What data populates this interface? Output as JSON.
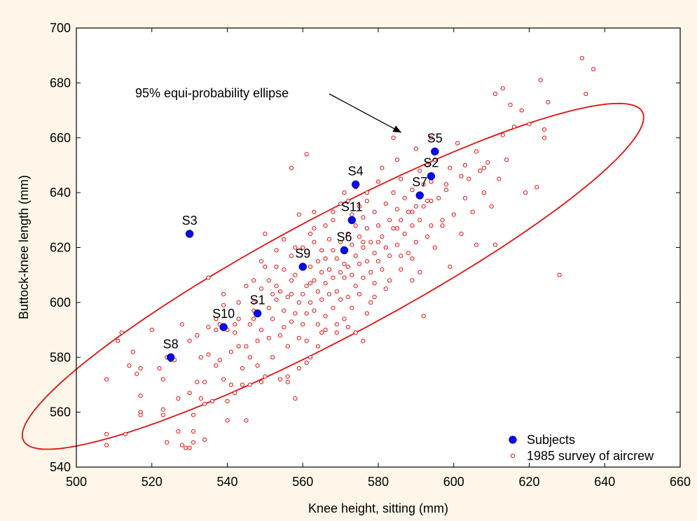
{
  "chart_data": {
    "type": "scatter",
    "xlabel": "Knee height, sitting (mm)",
    "ylabel": "Buttock-knee length (mm)",
    "xlim": [
      500,
      660
    ],
    "ylim": [
      540,
      700
    ],
    "xticks": [
      500,
      520,
      540,
      560,
      580,
      600,
      620,
      640,
      660
    ],
    "yticks": [
      540,
      560,
      580,
      600,
      620,
      640,
      660,
      680,
      700
    ],
    "grid": false,
    "legend_position": "bottom-right",
    "colors": {
      "subjects": "#0a0ae6",
      "survey": "#e01010",
      "ellipse": "#e01010",
      "background": "#fdf6e9"
    },
    "annotation": {
      "text": "95% equi-probability ellipse",
      "arrow_to": [
        586,
        662
      ]
    },
    "ellipse": {
      "label": "95% equi-probability ellipse",
      "center": [
        568.0,
        609.5
      ],
      "semi_major": 101.7,
      "semi_minor": 20.1,
      "angle_deg": 36.8
    },
    "series": [
      {
        "name": "Subjects",
        "marker": "filled-circle",
        "points": [
          {
            "label": "S1",
            "x": 548,
            "y": 596
          },
          {
            "label": "S2",
            "x": 594,
            "y": 646
          },
          {
            "label": "S3",
            "x": 530,
            "y": 625
          },
          {
            "label": "S4",
            "x": 574,
            "y": 643
          },
          {
            "label": "S5",
            "x": 595,
            "y": 655
          },
          {
            "label": "S6",
            "x": 571,
            "y": 619
          },
          {
            "label": "S7",
            "x": 591,
            "y": 639
          },
          {
            "label": "S8",
            "x": 525,
            "y": 580
          },
          {
            "label": "S9",
            "x": 560,
            "y": 613
          },
          {
            "label": "S10",
            "x": 539,
            "y": 591
          },
          {
            "label": "S11",
            "x": 573,
            "y": 630
          }
        ]
      },
      {
        "name": "1985 survey of aircrew",
        "marker": "open-circle",
        "points": [
          [
            508,
            572
          ],
          [
            508,
            552
          ],
          [
            508,
            548
          ],
          [
            511,
            586
          ],
          [
            512,
            589
          ],
          [
            513,
            552
          ],
          [
            514,
            577
          ],
          [
            515,
            582
          ],
          [
            516,
            574
          ],
          [
            517,
            576
          ],
          [
            517,
            566
          ],
          [
            517,
            560
          ],
          [
            517,
            559
          ],
          [
            520,
            590
          ],
          [
            523,
            572
          ],
          [
            523,
            561
          ],
          [
            523,
            559
          ],
          [
            524,
            549
          ],
          [
            524,
            580
          ],
          [
            525,
            579
          ],
          [
            526,
            579
          ],
          [
            527,
            565
          ],
          [
            528,
            548
          ],
          [
            528,
            592
          ],
          [
            529,
            547
          ],
          [
            530,
            586
          ],
          [
            530,
            567
          ],
          [
            530,
            547
          ],
          [
            531,
            559
          ],
          [
            531,
            549
          ],
          [
            532,
            571
          ],
          [
            532,
            588
          ],
          [
            533,
            580
          ],
          [
            533,
            565
          ],
          [
            534,
            571
          ],
          [
            534,
            563
          ],
          [
            534,
            550
          ],
          [
            535,
            609
          ],
          [
            535,
            591
          ],
          [
            535,
            581
          ],
          [
            536,
            564
          ],
          [
            537,
            577
          ],
          [
            537,
            590
          ],
          [
            538,
            579
          ],
          [
            538,
            592
          ],
          [
            539,
            603
          ],
          [
            539,
            599
          ],
          [
            539,
            572
          ],
          [
            540,
            564
          ],
          [
            540,
            557
          ],
          [
            541,
            582
          ],
          [
            541,
            570
          ],
          [
            542,
            567
          ],
          [
            542,
            592
          ],
          [
            543,
            600
          ],
          [
            543,
            594
          ],
          [
            543,
            584
          ],
          [
            544,
            576
          ],
          [
            544,
            570
          ],
          [
            545,
            584
          ],
          [
            545,
            557
          ],
          [
            545,
            606
          ],
          [
            546,
            592
          ],
          [
            546,
            580
          ],
          [
            547,
            608
          ],
          [
            547,
            600
          ],
          [
            547,
            594
          ],
          [
            548,
            586
          ],
          [
            548,
            577
          ],
          [
            549,
            590
          ],
          [
            549,
            571
          ],
          [
            549,
            605
          ],
          [
            550,
            613
          ],
          [
            550,
            625
          ],
          [
            550,
            573
          ],
          [
            551,
            587
          ],
          [
            551,
            598
          ],
          [
            551,
            608
          ],
          [
            552,
            580
          ],
          [
            552,
            594
          ],
          [
            553,
            601
          ],
          [
            553,
            619
          ],
          [
            553,
            613
          ],
          [
            554,
            588
          ],
          [
            554,
            572
          ],
          [
            554,
            604
          ],
          [
            555,
            597
          ],
          [
            555,
            591
          ],
          [
            555,
            623
          ],
          [
            555,
            612
          ],
          [
            556,
            602
          ],
          [
            556,
            584
          ],
          [
            556,
            573
          ],
          [
            557,
            617
          ],
          [
            557,
            593
          ],
          [
            557,
            608
          ],
          [
            557,
            649
          ],
          [
            558,
            596
          ],
          [
            558,
            610
          ],
          [
            558,
            565
          ],
          [
            559,
            600
          ],
          [
            559,
            587
          ],
          [
            559,
            576
          ],
          [
            559,
            632
          ],
          [
            560,
            613
          ],
          [
            560,
            603
          ],
          [
            560,
            592
          ],
          [
            560,
            620
          ],
          [
            561,
            606
          ],
          [
            561,
            596
          ],
          [
            561,
            586
          ],
          [
            561,
            654
          ],
          [
            562,
            613
          ],
          [
            562,
            600
          ],
          [
            562,
            580
          ],
          [
            562,
            625
          ],
          [
            563,
            622
          ],
          [
            563,
            608
          ],
          [
            563,
            597
          ],
          [
            563,
            633
          ],
          [
            564,
            615
          ],
          [
            564,
            604
          ],
          [
            564,
            592
          ],
          [
            564,
            584
          ],
          [
            565,
            619
          ],
          [
            565,
            611
          ],
          [
            565,
            601
          ],
          [
            565,
            589
          ],
          [
            566,
            628
          ],
          [
            566,
            616
          ],
          [
            566,
            607
          ],
          [
            566,
            595
          ],
          [
            567,
            612
          ],
          [
            567,
            603
          ],
          [
            567,
            623
          ],
          [
            568,
            619
          ],
          [
            568,
            609
          ],
          [
            568,
            598
          ],
          [
            568,
            630
          ],
          [
            569,
            616
          ],
          [
            569,
            604
          ],
          [
            569,
            592
          ],
          [
            570,
            622
          ],
          [
            570,
            611
          ],
          [
            570,
            601
          ],
          [
            570,
            636
          ],
          [
            571,
            619
          ],
          [
            571,
            609
          ],
          [
            571,
            594
          ],
          [
            571,
            640
          ],
          [
            572,
            625
          ],
          [
            572,
            613
          ],
          [
            572,
            602
          ],
          [
            572,
            591
          ],
          [
            573,
            632
          ],
          [
            573,
            621
          ],
          [
            573,
            610
          ],
          [
            573,
            598
          ],
          [
            574,
            628
          ],
          [
            574,
            617
          ],
          [
            574,
            606
          ],
          [
            574,
            642
          ],
          [
            575,
            624
          ],
          [
            575,
            614
          ],
          [
            575,
            603
          ],
          [
            575,
            635
          ],
          [
            576,
            631
          ],
          [
            576,
            620
          ],
          [
            576,
            609
          ],
          [
            576,
            586
          ],
          [
            577,
            627
          ],
          [
            577,
            615
          ],
          [
            577,
            637
          ],
          [
            578,
            622
          ],
          [
            578,
            611
          ],
          [
            578,
            600
          ],
          [
            579,
            633
          ],
          [
            579,
            618
          ],
          [
            579,
            607
          ],
          [
            580,
            628
          ],
          [
            580,
            615
          ],
          [
            580,
            644
          ],
          [
            581,
            624
          ],
          [
            581,
            612
          ],
          [
            582,
            636
          ],
          [
            582,
            620
          ],
          [
            582,
            605
          ],
          [
            583,
            630
          ],
          [
            583,
            617
          ],
          [
            584,
            640
          ],
          [
            584,
            627
          ],
          [
            584,
            660
          ],
          [
            585,
            634
          ],
          [
            585,
            621
          ],
          [
            586,
            645
          ],
          [
            586,
            630
          ],
          [
            586,
            617
          ],
          [
            587,
            638
          ],
          [
            587,
            625
          ],
          [
            588,
            633
          ],
          [
            588,
            618
          ],
          [
            589,
            641
          ],
          [
            589,
            628
          ],
          [
            589,
            608
          ],
          [
            590,
            635
          ],
          [
            590,
            622
          ],
          [
            591,
            648
          ],
          [
            591,
            630
          ],
          [
            591,
            611
          ],
          [
            592,
            643
          ],
          [
            592,
            635
          ],
          [
            592,
            595
          ],
          [
            593,
            650
          ],
          [
            593,
            637
          ],
          [
            594,
            644
          ],
          [
            594,
            628
          ],
          [
            595,
            652
          ],
          [
            595,
            620
          ],
          [
            596,
            638
          ],
          [
            597,
            630
          ],
          [
            598,
            643
          ],
          [
            599,
            649
          ],
          [
            600,
            632
          ],
          [
            601,
            658
          ],
          [
            602,
            625
          ],
          [
            603,
            638
          ],
          [
            604,
            645
          ],
          [
            605,
            633
          ],
          [
            606,
            655
          ],
          [
            606,
            621
          ],
          [
            607,
            648
          ],
          [
            608,
            640
          ],
          [
            609,
            651
          ],
          [
            610,
            635
          ],
          [
            611,
            676
          ],
          [
            611,
            621
          ],
          [
            612,
            645
          ],
          [
            613,
            678
          ],
          [
            614,
            652
          ],
          [
            615,
            672
          ],
          [
            616,
            664
          ],
          [
            618,
            670
          ],
          [
            619,
            640
          ],
          [
            620,
            665
          ],
          [
            622,
            642
          ],
          [
            623,
            681
          ],
          [
            624,
            660
          ],
          [
            624,
            663
          ],
          [
            625,
            673
          ],
          [
            628,
            610
          ],
          [
            634,
            689
          ],
          [
            635,
            676
          ],
          [
            637,
            685
          ],
          [
            522,
            576
          ],
          [
            527,
            553
          ],
          [
            531,
            553
          ],
          [
            540,
            590
          ],
          [
            546,
            570
          ],
          [
            556,
            571
          ],
          [
            561,
            578
          ],
          [
            566,
            590
          ],
          [
            569,
            589
          ],
          [
            574,
            589
          ],
          [
            577,
            596
          ],
          [
            579,
            602
          ],
          [
            583,
            608
          ],
          [
            586,
            612
          ],
          [
            589,
            616
          ],
          [
            593,
            624
          ],
          [
            597,
            628
          ],
          [
            599,
            613
          ],
          [
            603,
            650
          ],
          [
            549,
            615
          ],
          [
            553,
            606
          ],
          [
            558,
            620
          ],
          [
            563,
            627
          ],
          [
            568,
            633
          ],
          [
            572,
            637
          ],
          [
            577,
            640
          ],
          [
            581,
            649
          ],
          [
            585,
            652
          ],
          [
            590,
            656
          ],
          [
            594,
            660
          ],
          [
            537,
            594
          ],
          [
            542,
            589
          ],
          [
            547,
            597
          ],
          [
            552,
            603
          ],
          [
            557,
            603
          ],
          [
            562,
            607
          ],
          [
            567,
            612
          ],
          [
            571,
            614
          ],
          [
            576,
            622
          ],
          [
            580,
            622
          ],
          [
            585,
            627
          ],
          [
            589,
            633
          ],
          [
            594,
            637
          ],
          [
            598,
            641
          ],
          [
            602,
            646
          ],
          [
            608,
            649
          ],
          [
            613,
            661
          ]
        ]
      }
    ]
  }
}
